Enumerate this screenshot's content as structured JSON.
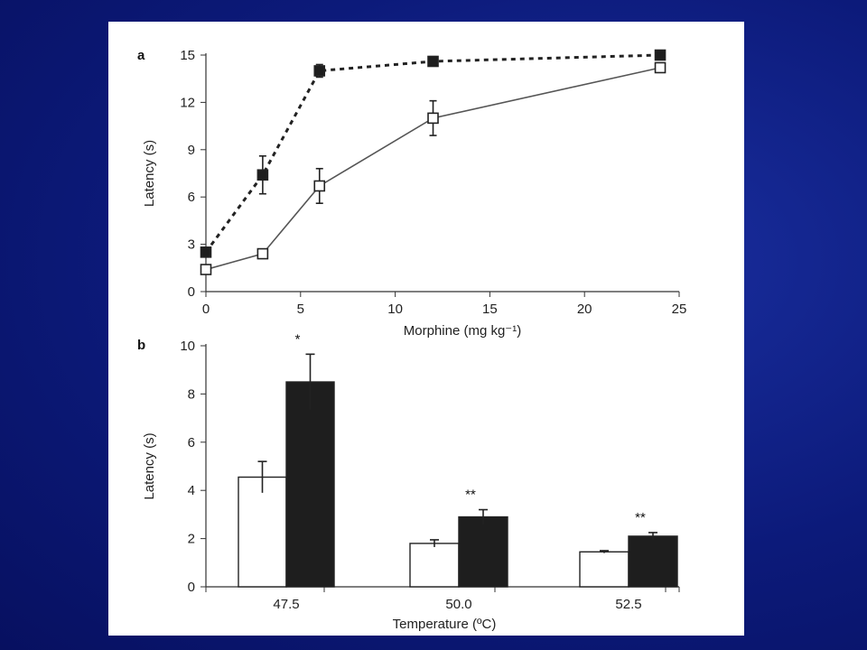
{
  "chart_data": [
    {
      "type": "line",
      "panel_label": "a",
      "xlabel": "Morphine (mg kg⁻¹)",
      "ylabel": "Latency (s)",
      "xlim": [
        0,
        25
      ],
      "ylim": [
        0,
        15
      ],
      "xticks": [
        0,
        5,
        10,
        15,
        20,
        25
      ],
      "yticks": [
        0,
        3,
        6,
        9,
        12,
        15
      ],
      "grid": false,
      "series": [
        {
          "marker": "filled-square",
          "line_style": "dashed",
          "color": "#222222",
          "x": [
            0,
            3,
            6,
            12,
            24
          ],
          "y": [
            2.5,
            7.4,
            14.0,
            14.6,
            15.0
          ],
          "err": [
            0,
            1.2,
            0.4,
            0.3,
            0
          ]
        },
        {
          "marker": "open-square",
          "line_style": "solid",
          "color": "#555555",
          "x": [
            0,
            3,
            6,
            12,
            24
          ],
          "y": [
            1.4,
            2.4,
            6.7,
            11.0,
            14.2
          ],
          "err": [
            0,
            0,
            1.1,
            1.1,
            0.3
          ]
        }
      ]
    },
    {
      "type": "bar",
      "panel_label": "b",
      "xlabel": "Temperature (ºC)",
      "ylabel": "Latency (s)",
      "ylim": [
        0,
        10
      ],
      "yticks": [
        0,
        2,
        4,
        6,
        8,
        10
      ],
      "grid": false,
      "categories": [
        "47.5",
        "50.0",
        "52.5"
      ],
      "series": [
        {
          "fill": "#ffffff",
          "values": [
            4.55,
            1.8,
            1.45
          ],
          "err": [
            0.65,
            0.15,
            0.05
          ]
        },
        {
          "fill": "#1e1e1e",
          "values": [
            8.5,
            2.9,
            2.1
          ],
          "err": [
            1.15,
            0.3,
            0.15
          ]
        }
      ],
      "annotations": [
        "*",
        "**",
        "**"
      ]
    }
  ]
}
